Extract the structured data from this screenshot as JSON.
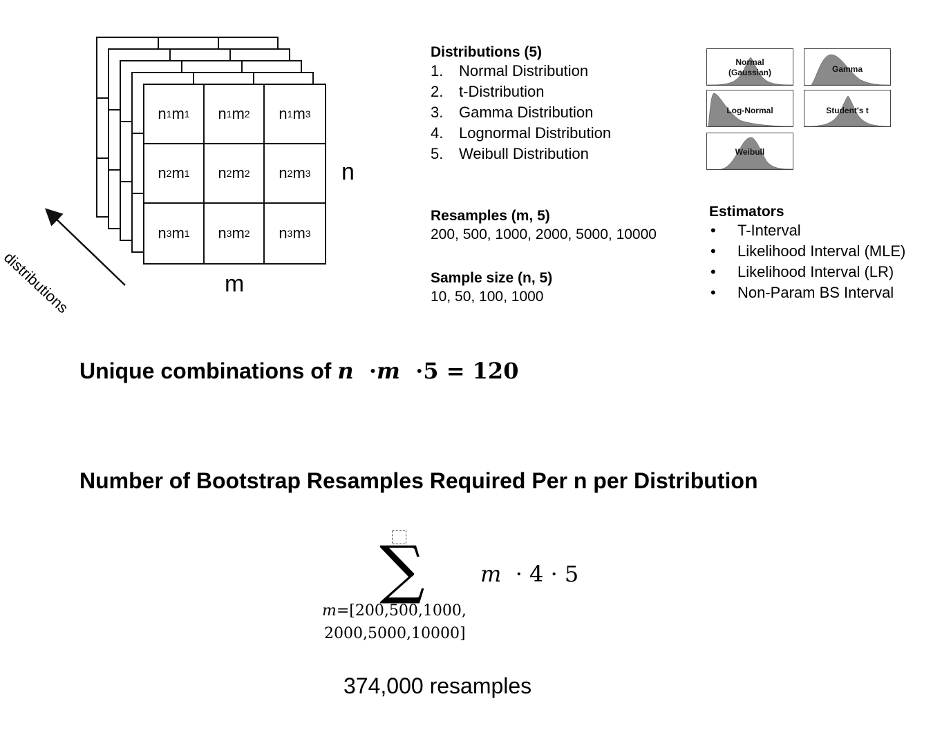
{
  "grid": {
    "cells": [
      [
        "n",
        "1",
        "m",
        "1"
      ],
      [
        "n",
        "1",
        "m",
        "2"
      ],
      [
        "n",
        "1",
        "m",
        "3"
      ],
      [
        "n",
        "2",
        "m",
        "1"
      ],
      [
        "n",
        "2",
        "m",
        "2"
      ],
      [
        "n",
        "2",
        "m",
        "3"
      ],
      [
        "n",
        "3",
        "m",
        "1"
      ],
      [
        "n",
        "3",
        "m",
        "2"
      ],
      [
        "n",
        "3",
        "m",
        "3"
      ]
    ],
    "axis_n": "n",
    "axis_m": "m",
    "axis_depth": "distributions"
  },
  "distributions": {
    "heading": "Distributions (5)",
    "items": [
      {
        "num": "1.",
        "label": "Normal Distribution"
      },
      {
        "num": "2.",
        "label": "t-Distribution"
      },
      {
        "num": "3.",
        "label": "Gamma Distribution"
      },
      {
        "num": "4.",
        "label": "Lognormal Distribution"
      },
      {
        "num": "5.",
        "label": "Weibull Distribution"
      }
    ]
  },
  "thumbnails": {
    "normal": [
      "Normal",
      "(Gaussian)"
    ],
    "gamma": "Gamma",
    "lognormal": "Log-Normal",
    "students_t": "Student's t",
    "weibull": "Weibull",
    "fill_color": "#8a8a8a"
  },
  "resamples": {
    "heading": "Resamples (m, 5)",
    "values": "200, 500, 1000, 2000, 5000, 10000"
  },
  "sample_size": {
    "heading": "Sample size (n, 5)",
    "values": "10, 50, 100, 1000"
  },
  "estimators": {
    "heading": "Estimators",
    "bullet": "•",
    "items": [
      "T-Interval",
      "Likelihood Interval (MLE)",
      "Likelihood Interval (LR)",
      "Non-Param BS Interval"
    ]
  },
  "combinations": {
    "prefix": "Unique combinations of ",
    "var_n": "n",
    "dot": "·",
    "var_m": "m",
    "five": "5",
    "equals": "=",
    "result": "120"
  },
  "bootstrap": {
    "title": "Number of Bootstrap Resamples Required Per n per Distribution",
    "sum_symbol": "∑",
    "term_var": "m",
    "term_rest": "· 4 · 5",
    "lower_var": "m",
    "lower_line1": "=[200,500,1000,",
    "lower_line2": "2000,5000,10000]",
    "result": "374,000 resamples"
  }
}
